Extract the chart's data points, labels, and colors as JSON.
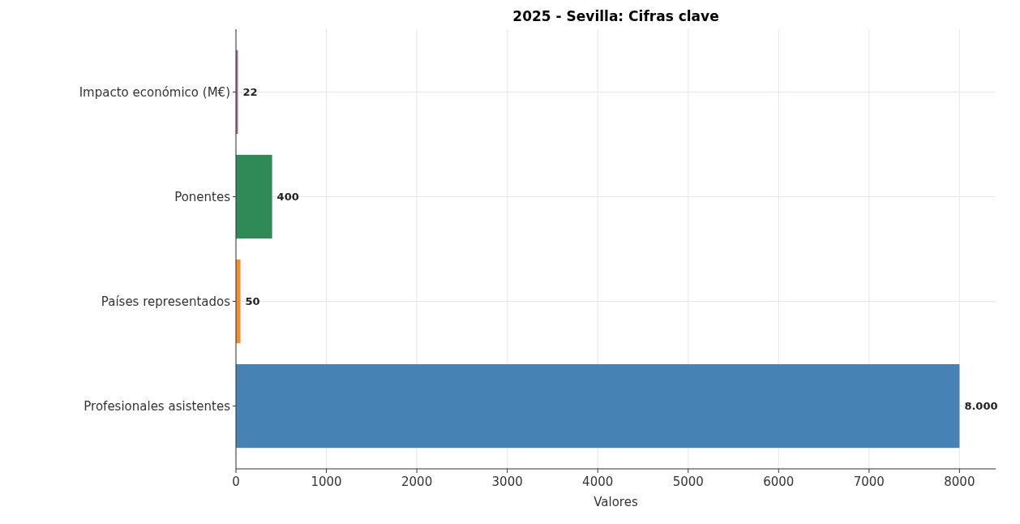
{
  "chart_data": {
    "type": "bar",
    "orientation": "horizontal",
    "title": "2025 - Sevilla: Cifras clave",
    "xlabel": "Valores",
    "categories": [
      "Impacto económico (M€)",
      "Ponentes",
      "Países representados",
      "Profesionales asistentes"
    ],
    "values": [
      22,
      400,
      50,
      8000
    ],
    "colors": [
      "#9a6b8f",
      "#2e8b57",
      "#f28e2b",
      "#4682b4"
    ],
    "value_labels": [
      "22",
      "400",
      "50",
      "8.000"
    ],
    "xlim": [
      0,
      8400
    ],
    "xticks": [
      0,
      1000,
      2000,
      3000,
      4000,
      5000,
      6000,
      7000,
      8000
    ],
    "grid": true
  }
}
